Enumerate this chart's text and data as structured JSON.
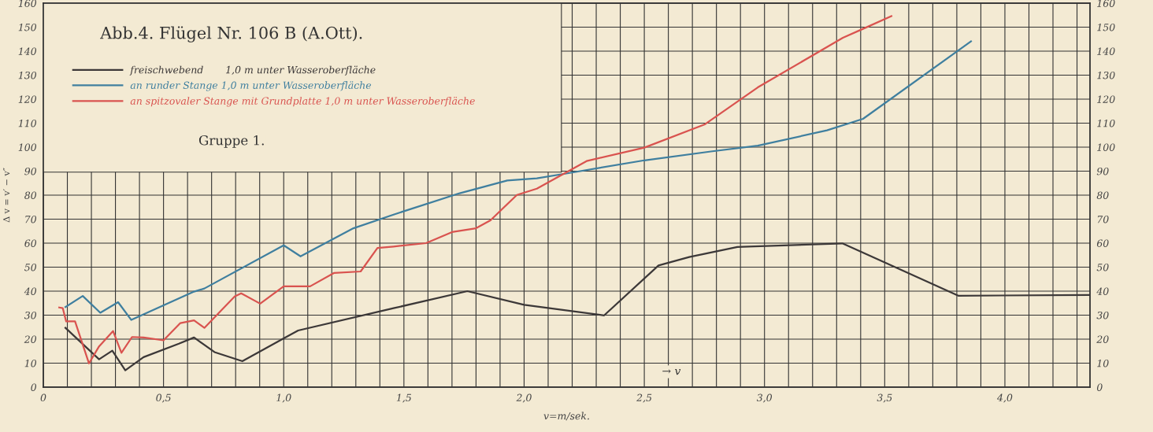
{
  "chart_data": {
    "type": "line",
    "title": "Abb.4. Flügel Nr. 106 B (A.Ott).",
    "xlabel": "v=m/sek.",
    "ylabel": "Δ v = v′ − v″",
    "annotations": [
      "Gruppe 1.",
      "→ v"
    ],
    "series": [
      {
        "name": "freischwebend       1,0 m unter Wasseroberfläche",
        "color": "#3c3838",
        "x": [
          0.092,
          0.232,
          0.287,
          0.341,
          0.417,
          0.564,
          0.627,
          0.712,
          0.828,
          1.0,
          1.06,
          1.457,
          1.764,
          2.0,
          2.333,
          2.559,
          2.687,
          2.887,
          2.933,
          3.324,
          3.5,
          3.806,
          4.354
        ],
        "values": [
          24.7,
          11.6,
          15.2,
          7.0,
          12.5,
          18.1,
          20.7,
          14.6,
          10.8,
          20.3,
          23.6,
          32.9,
          40.0,
          34.3,
          29.9,
          50.7,
          54.2,
          58.4,
          58.6,
          59.9,
          52.0,
          38.1,
          38.4
        ]
      },
      {
        "name": "an runder Stange 1,0 m unter Wasseroberfläche",
        "color": "#3f7f9f",
        "x": [
          0.092,
          0.164,
          0.237,
          0.311,
          0.366,
          0.627,
          0.67,
          1.0,
          1.07,
          1.29,
          1.457,
          1.732,
          1.93,
          2.053,
          2.18,
          2.5,
          2.777,
          2.972,
          3.26,
          3.41,
          3.859
        ],
        "values": [
          33.4,
          38.0,
          31.0,
          35.4,
          28.0,
          39.8,
          41.1,
          59.1,
          54.5,
          66.2,
          71.9,
          80.8,
          86.1,
          87.0,
          89.1,
          94.5,
          98.2,
          100.6,
          107.0,
          111.8,
          144.1
        ]
      },
      {
        "name": "an spitzovaler Stange mit Grundplatte 1,0 m unter Wasseroberfläche",
        "color": "#d9534f",
        "x": [
          0.066,
          0.081,
          0.095,
          0.132,
          0.19,
          0.232,
          0.29,
          0.325,
          0.369,
          0.417,
          0.5,
          0.57,
          0.627,
          0.67,
          0.796,
          0.823,
          0.902,
          1.0,
          1.11,
          1.21,
          1.32,
          1.39,
          1.457,
          1.592,
          1.7,
          1.8,
          1.86,
          1.97,
          2.053,
          2.26,
          2.5,
          2.75,
          2.972,
          3.326,
          3.41,
          3.528
        ],
        "values": [
          33.2,
          32.9,
          27.4,
          27.4,
          9.9,
          17.0,
          23.4,
          14.3,
          20.9,
          20.7,
          19.5,
          26.7,
          27.8,
          24.7,
          37.8,
          39.1,
          34.8,
          42.0,
          42.0,
          47.6,
          48.2,
          58.0,
          58.6,
          60.0,
          64.6,
          66.2,
          69.5,
          80.1,
          82.7,
          94.2,
          99.8,
          109.4,
          124.9,
          145.6,
          149.3,
          154.6
        ]
      }
    ],
    "xlim": [
      0,
      4.354
    ],
    "xticks": [
      {
        "value": 0,
        "label": "0"
      },
      {
        "value": 0.1,
        "label": null
      },
      {
        "value": 0.2,
        "label": null
      },
      {
        "value": 0.3,
        "label": null
      },
      {
        "value": 0.4,
        "label": null
      },
      {
        "value": 0.5,
        "label": "0,5"
      },
      {
        "value": 0.6,
        "label": null
      },
      {
        "value": 0.7,
        "label": null
      },
      {
        "value": 0.8,
        "label": null
      },
      {
        "value": 0.9,
        "label": null
      },
      {
        "value": 1.0,
        "label": "1,0"
      },
      {
        "value": 1.1,
        "label": null
      },
      {
        "value": 1.2,
        "label": null
      },
      {
        "value": 1.3,
        "label": null
      },
      {
        "value": 1.4,
        "label": null
      },
      {
        "value": 1.5,
        "label": "1,5"
      },
      {
        "value": 1.6,
        "label": null
      },
      {
        "value": 1.7,
        "label": null
      },
      {
        "value": 1.8,
        "label": null
      },
      {
        "value": 1.9,
        "label": null
      },
      {
        "value": 2.0,
        "label": "2,0"
      },
      {
        "value": 2.1,
        "label": null
      },
      {
        "value": 2.2,
        "label": null
      },
      {
        "value": 2.3,
        "label": null
      },
      {
        "value": 2.4,
        "label": null
      },
      {
        "value": 2.5,
        "label": "2,5"
      },
      {
        "value": 2.6,
        "label": null
      },
      {
        "value": 2.7,
        "label": null
      },
      {
        "value": 2.8,
        "label": null
      },
      {
        "value": 2.9,
        "label": null
      },
      {
        "value": 3.0,
        "label": "3,0"
      },
      {
        "value": 3.1,
        "label": null
      },
      {
        "value": 3.2,
        "label": null
      },
      {
        "value": 3.3,
        "label": null
      },
      {
        "value": 3.4,
        "label": null
      },
      {
        "value": 3.5,
        "label": "3,5"
      },
      {
        "value": 3.6,
        "label": null
      },
      {
        "value": 3.7,
        "label": null
      },
      {
        "value": 3.8,
        "label": null
      },
      {
        "value": 3.9,
        "label": null
      },
      {
        "value": 4.0,
        "label": "4,0"
      },
      {
        "value": 4.1,
        "label": null
      },
      {
        "value": 4.2,
        "label": null
      },
      {
        "value": 4.3,
        "label": null
      }
    ],
    "ylim": [
      0,
      160
    ],
    "yticks": [
      0,
      10,
      20,
      30,
      40,
      50,
      60,
      70,
      80,
      90,
      100,
      110,
      120,
      130,
      140,
      150,
      160
    ],
    "y2lim": [
      0,
      160
    ],
    "y2ticks": [
      0,
      10,
      20,
      30,
      40,
      50,
      60,
      70,
      80,
      90,
      100,
      110,
      120,
      130,
      140,
      150,
      160
    ],
    "grid": true,
    "legend": "top left",
    "line_style": "solid",
    "marker": "none"
  }
}
